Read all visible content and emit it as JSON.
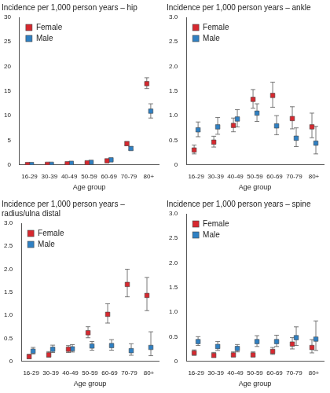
{
  "chart_data": [
    {
      "type": "scatter",
      "title": "Incidence per 1,000 person years – hip",
      "x_label": "Age group",
      "categories": [
        "16-29",
        "30-39",
        "40-49",
        "50-59",
        "60-69",
        "70-79",
        "80+"
      ],
      "ylim": [
        0,
        30
      ],
      "yticks": [
        0,
        5,
        10,
        15,
        20,
        25,
        30
      ],
      "grid": false,
      "legend": "top-left",
      "series": [
        {
          "name": "Female",
          "color": "#d7282f",
          "marker": "square",
          "values": [
            0.05,
            0.1,
            0.2,
            0.4,
            0.8,
            4.3,
            16.5
          ],
          "error_low": [
            0.03,
            0.07,
            0.15,
            0.32,
            0.68,
            3.9,
            15.5
          ],
          "error_high": [
            0.08,
            0.14,
            0.26,
            0.5,
            0.95,
            4.7,
            17.7
          ]
        },
        {
          "name": "Male",
          "color": "#2f80c3",
          "marker": "square",
          "values": [
            0.05,
            0.1,
            0.3,
            0.5,
            1.0,
            3.3,
            10.9
          ],
          "error_low": [
            0.03,
            0.07,
            0.23,
            0.4,
            0.85,
            3.0,
            9.5
          ],
          "error_high": [
            0.08,
            0.14,
            0.38,
            0.62,
            1.2,
            3.7,
            12.4
          ]
        }
      ]
    },
    {
      "type": "scatter",
      "title": "Incidence per 1,000 person years – ankle",
      "x_label": "Age group",
      "categories": [
        "16-29",
        "30-39",
        "40-49",
        "50-59",
        "60-69",
        "70-79",
        "80+"
      ],
      "ylim": [
        0,
        3
      ],
      "yticks": [
        0,
        0.5,
        {
          "value": 1,
          "label": "1.0"
        },
        1.5,
        {
          "value": 2,
          "label": "2.0"
        },
        2.5,
        {
          "value": 3,
          "label": "3.0"
        }
      ],
      "grid": false,
      "legend": "top-left",
      "series": [
        {
          "name": "Female",
          "color": "#d7282f",
          "marker": "square",
          "values": [
            0.3,
            0.46,
            0.8,
            1.33,
            1.41,
            0.94,
            0.77
          ],
          "error_low": [
            0.22,
            0.36,
            0.67,
            1.15,
            1.17,
            0.73,
            0.55
          ],
          "error_high": [
            0.4,
            0.58,
            0.95,
            1.53,
            1.68,
            1.18,
            1.05
          ]
        },
        {
          "name": "Male",
          "color": "#2f80c3",
          "marker": "square",
          "values": [
            0.71,
            0.77,
            0.93,
            1.05,
            0.79,
            0.54,
            0.44
          ],
          "error_low": [
            0.57,
            0.62,
            0.77,
            0.88,
            0.61,
            0.37,
            0.22
          ],
          "error_high": [
            0.87,
            0.96,
            1.12,
            1.24,
            1.0,
            0.75,
            0.78
          ]
        }
      ]
    },
    {
      "type": "scatter",
      "title": "Incidence per 1,000 person years – radius/ulna distal",
      "x_label": "Age group",
      "categories": [
        "16-29",
        "30-39",
        "40-49",
        "50-59",
        "60-69",
        "70-79",
        "80+"
      ],
      "ylim": [
        0,
        3
      ],
      "yticks": [
        0,
        0.5,
        {
          "value": 1,
          "label": "1.0"
        },
        1.5,
        {
          "value": 2,
          "label": "2.0"
        },
        2.5,
        {
          "value": 3,
          "label": "3.0"
        }
      ],
      "grid": false,
      "legend": "top-left",
      "series": [
        {
          "name": "Female",
          "color": "#d7282f",
          "marker": "square",
          "values": [
            0.1,
            0.14,
            0.26,
            0.62,
            1.02,
            1.67,
            1.43
          ],
          "error_low": [
            0.06,
            0.09,
            0.19,
            0.51,
            0.83,
            1.4,
            1.1
          ],
          "error_high": [
            0.15,
            0.21,
            0.34,
            0.75,
            1.25,
            2.0,
            1.82
          ]
        },
        {
          "name": "Male",
          "color": "#2f80c3",
          "marker": "square",
          "values": [
            0.22,
            0.26,
            0.27,
            0.33,
            0.34,
            0.23,
            0.3
          ],
          "error_low": [
            0.16,
            0.19,
            0.2,
            0.24,
            0.24,
            0.13,
            0.12
          ],
          "error_high": [
            0.3,
            0.35,
            0.36,
            0.43,
            0.47,
            0.38,
            0.64
          ]
        }
      ]
    },
    {
      "type": "scatter",
      "title": "Incidence per 1,000 person years – spine",
      "x_label": "Age group",
      "categories": [
        "16-29",
        "30-39",
        "40-49",
        "50-59",
        "60-69",
        "70-79",
        "80+"
      ],
      "ylim": [
        0,
        3
      ],
      "yticks": [
        0,
        0.5,
        {
          "value": 1,
          "label": "1.0"
        },
        1.5,
        {
          "value": 2,
          "label": "2.0"
        },
        2.5,
        {
          "value": 3,
          "label": "3.0"
        }
      ],
      "grid": false,
      "legend": "top-left",
      "series": [
        {
          "name": "Female",
          "color": "#d7282f",
          "marker": "square",
          "values": [
            0.17,
            0.12,
            0.13,
            0.13,
            0.2,
            0.35,
            0.28
          ],
          "error_low": [
            0.12,
            0.08,
            0.09,
            0.09,
            0.14,
            0.25,
            0.17
          ],
          "error_high": [
            0.23,
            0.18,
            0.19,
            0.19,
            0.28,
            0.48,
            0.44
          ]
        },
        {
          "name": "Male",
          "color": "#2f80c3",
          "marker": "square",
          "values": [
            0.4,
            0.3,
            0.26,
            0.4,
            0.4,
            0.48,
            0.45
          ],
          "error_low": [
            0.32,
            0.22,
            0.19,
            0.3,
            0.3,
            0.32,
            0.22
          ],
          "error_high": [
            0.5,
            0.4,
            0.34,
            0.52,
            0.53,
            0.7,
            0.82
          ]
        }
      ]
    }
  ]
}
